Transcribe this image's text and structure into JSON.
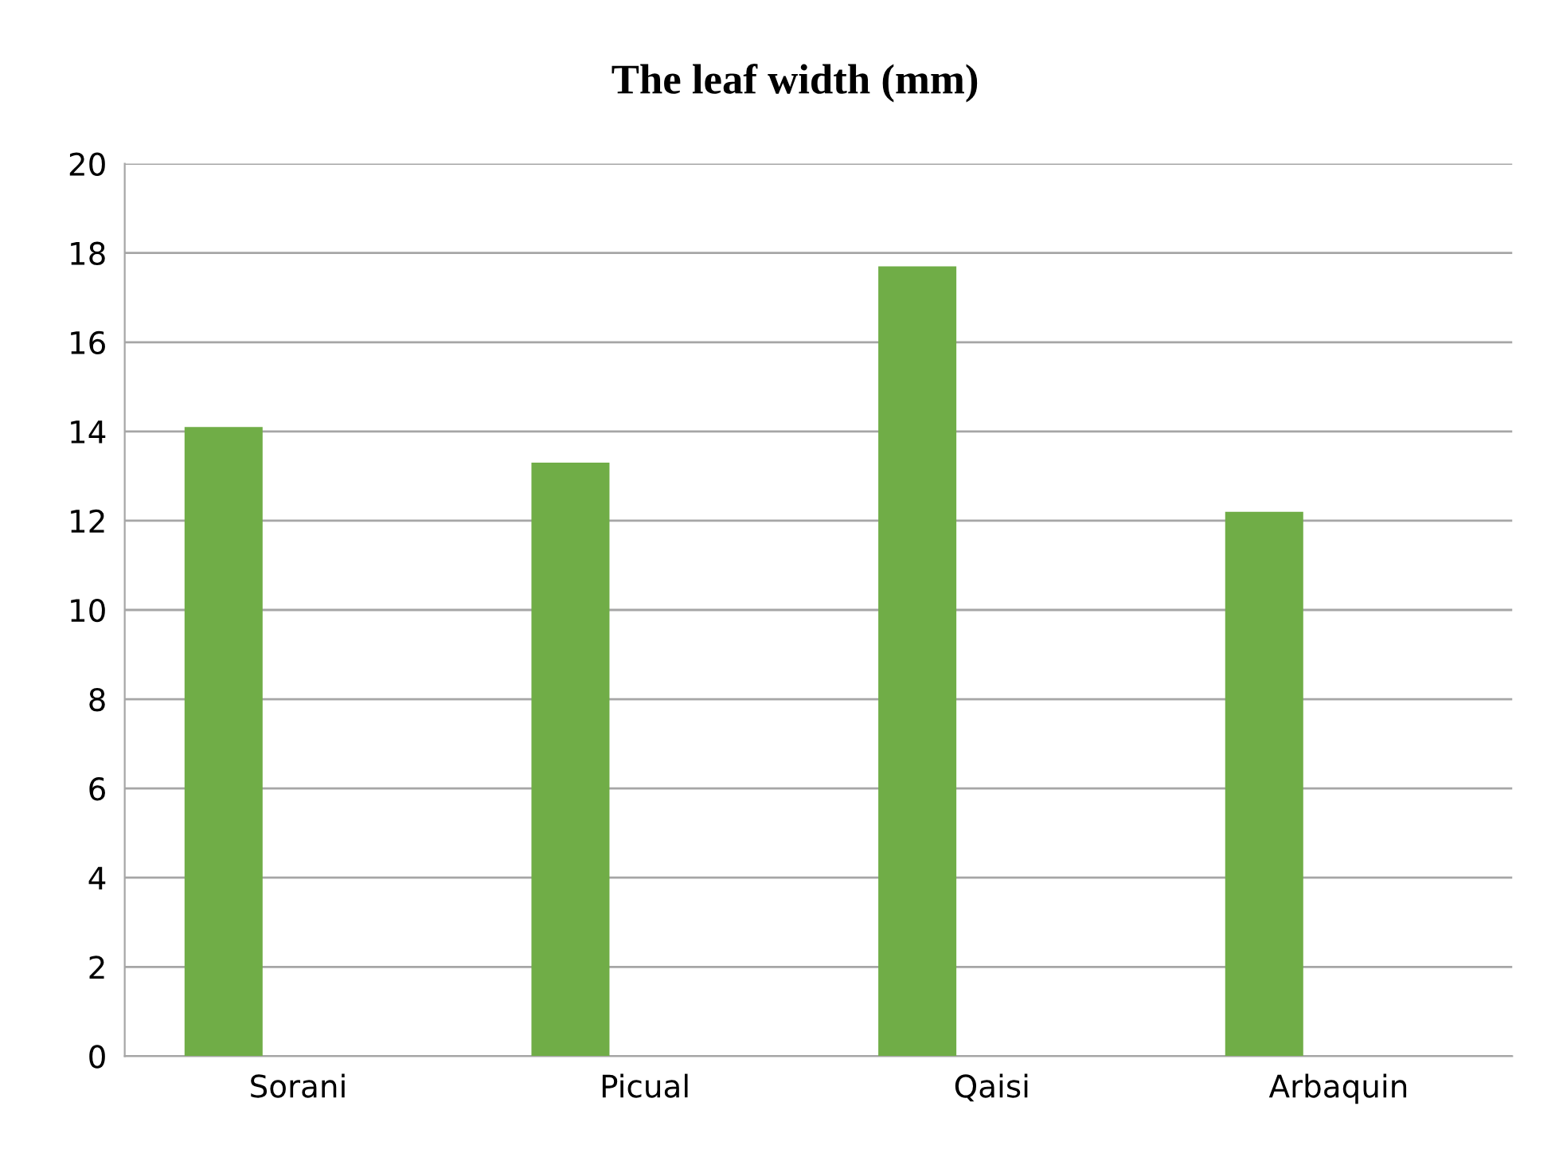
{
  "chart_data": {
    "type": "bar",
    "title": "The leaf width (mm)",
    "categories": [
      "Sorani",
      "Picual",
      "Qaisi",
      "Arbaquin"
    ],
    "values": [
      14.1,
      13.3,
      17.7,
      12.2
    ],
    "color": "#70ad47",
    "ylim": [
      0,
      20
    ],
    "yticks": [
      0,
      2,
      4,
      6,
      8,
      10,
      12,
      14,
      16,
      18,
      20
    ],
    "grid": "y"
  }
}
